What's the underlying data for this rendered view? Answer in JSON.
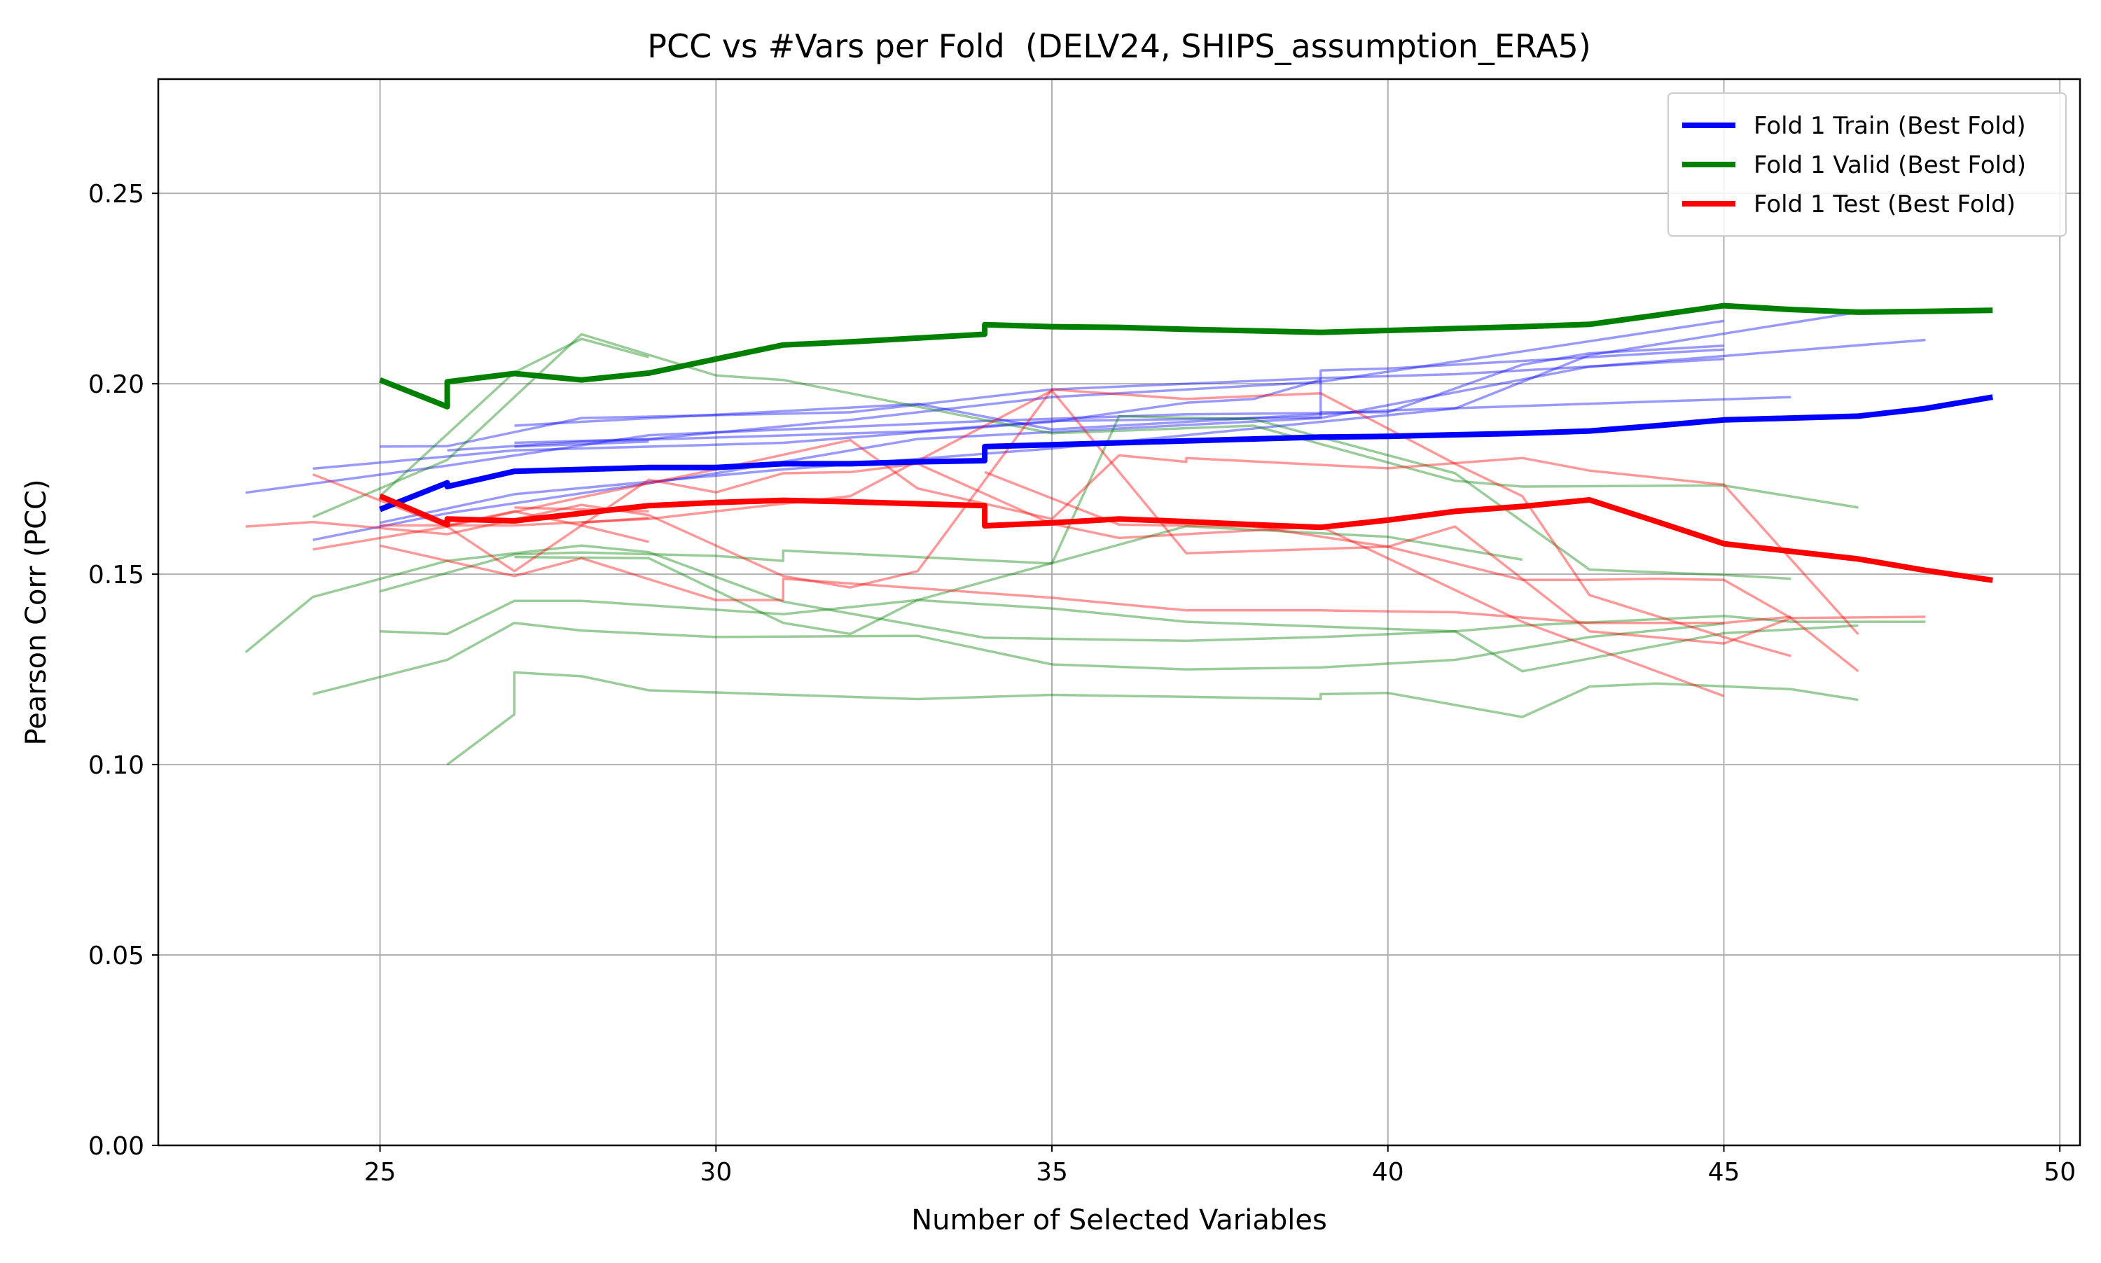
{
  "chart_data": {
    "type": "line",
    "title": "PCC vs #Vars per Fold  (DELV24, SHIPS_assumption_ERA5)",
    "xlabel": "Number of Selected Variables",
    "ylabel": "Pearson Corr (PCC)",
    "xlim": [
      21.7,
      50.3
    ],
    "ylim": [
      0,
      0.28
    ],
    "xticks": [
      25,
      30,
      35,
      40,
      45,
      50
    ],
    "yticks": [
      0.0,
      0.05,
      0.1,
      0.15,
      0.2,
      0.25
    ],
    "xtick_labels": [
      "25",
      "30",
      "35",
      "40",
      "45",
      "50"
    ],
    "ytick_labels": [
      "0.00",
      "0.05",
      "0.10",
      "0.15",
      "0.20",
      "0.25"
    ],
    "grid": true,
    "legend_position": "upper right",
    "colors": {
      "train": "#0000ff",
      "valid": "#008000",
      "test": "#ff0000"
    },
    "series": [
      {
        "name": "Fold 1 Train (Best Fold)",
        "role": "train",
        "highlight": true,
        "x": [
          25,
          26,
          26,
          27,
          28,
          29,
          30,
          31,
          32,
          33,
          34,
          34,
          35,
          36,
          37,
          38,
          39,
          40,
          41,
          42,
          43,
          44,
          45,
          46,
          47,
          48,
          49
        ],
        "y": [
          0.167,
          0.174,
          0.173,
          0.177,
          0.1775,
          0.178,
          0.178,
          0.179,
          0.179,
          0.1795,
          0.1798,
          0.1835,
          0.184,
          0.1845,
          0.185,
          0.1855,
          0.186,
          0.1862,
          0.1866,
          0.187,
          0.1876,
          0.189,
          0.1905,
          0.191,
          0.1915,
          0.1935,
          0.1965
        ]
      },
      {
        "name": "Fold 1 Valid (Best Fold)",
        "role": "valid",
        "highlight": true,
        "x": [
          25,
          26,
          26,
          27,
          28,
          29,
          30,
          31,
          32,
          33,
          34,
          34,
          35,
          36,
          37,
          38,
          39,
          40,
          41,
          42,
          43,
          44,
          45,
          46,
          47,
          48,
          49
        ],
        "y": [
          0.201,
          0.194,
          0.2005,
          0.2027,
          0.201,
          0.2028,
          0.2065,
          0.2102,
          0.211,
          0.212,
          0.213,
          0.2155,
          0.215,
          0.2148,
          0.2143,
          0.2139,
          0.2135,
          0.214,
          0.2145,
          0.215,
          0.2156,
          0.218,
          0.2205,
          0.2195,
          0.2188,
          0.219,
          0.2193
        ]
      },
      {
        "name": "Fold 1 Test (Best Fold)",
        "role": "test",
        "highlight": true,
        "x": [
          25,
          26,
          26,
          27,
          28,
          29,
          30,
          31,
          32,
          33,
          34,
          34,
          35,
          36,
          37,
          38,
          39,
          40,
          41,
          42,
          43,
          44,
          45,
          46,
          47,
          48,
          49
        ],
        "y": [
          0.1705,
          0.163,
          0.1645,
          0.164,
          0.166,
          0.168,
          0.1688,
          0.1694,
          0.169,
          0.1685,
          0.168,
          0.1627,
          0.1635,
          0.1645,
          0.1638,
          0.163,
          0.1623,
          0.1642,
          0.1665,
          0.1678,
          0.1695,
          0.1638,
          0.158,
          0.156,
          0.154,
          0.151,
          0.1484
        ]
      },
      {
        "role": "train",
        "x": [
          23,
          26,
          29,
          34,
          37,
          39,
          39,
          40,
          42,
          43,
          45
        ],
        "y": [
          0.1714,
          0.1785,
          0.1865,
          0.1902,
          0.192,
          0.1923,
          0.1925,
          0.1925,
          0.205,
          0.208,
          0.21
        ]
      },
      {
        "role": "train",
        "x": [
          24,
          27,
          31,
          35,
          37,
          38,
          39
        ],
        "y": [
          0.1777,
          0.1825,
          0.1845,
          0.19,
          0.195,
          0.196,
          0.201
        ]
      },
      {
        "role": "train",
        "x": [
          25,
          26,
          28,
          32,
          35,
          39,
          41,
          45
        ],
        "y": [
          0.1835,
          0.1836,
          0.191,
          0.1925,
          0.1985,
          0.2015,
          0.2025,
          0.2065
        ]
      },
      {
        "role": "train",
        "x": [
          26,
          28,
          33,
          35,
          39,
          39,
          40,
          45
        ],
        "y": [
          0.1825,
          0.1848,
          0.1875,
          0.1902,
          0.1912,
          0.2035,
          0.204,
          0.209
        ]
      },
      {
        "role": "train",
        "x": [
          27,
          29,
          32,
          35,
          39,
          45
        ],
        "y": [
          0.1845,
          0.1855,
          0.1905,
          0.1965,
          0.2005,
          0.2165
        ]
      },
      {
        "role": "train",
        "x": [
          27,
          28,
          33,
          35,
          40,
          46
        ],
        "y": [
          0.189,
          0.19,
          0.1947,
          0.188,
          0.193,
          0.1965
        ]
      },
      {
        "role": "train",
        "x": [
          24,
          26,
          30,
          33,
          39,
          43,
          48
        ],
        "y": [
          0.159,
          0.166,
          0.1765,
          0.1855,
          0.191,
          0.2045,
          0.2115
        ]
      },
      {
        "role": "train",
        "x": [
          25,
          27,
          31,
          35,
          41,
          43,
          47
        ],
        "y": [
          0.1635,
          0.171,
          0.1775,
          0.183,
          0.1935,
          0.2075,
          0.2188
        ]
      },
      {
        "role": "train",
        "x": [
          27,
          29
        ],
        "y": [
          0.1835,
          0.1848
        ]
      },
      {
        "role": "valid",
        "x": [
          24,
          26,
          28,
          30,
          31,
          35,
          38,
          41,
          42,
          45,
          47
        ],
        "y": [
          0.165,
          0.18,
          0.213,
          0.2022,
          0.201,
          0.187,
          0.189,
          0.1745,
          0.173,
          0.1733,
          0.1675
        ]
      },
      {
        "role": "valid",
        "x": [
          25,
          27,
          28,
          29
        ],
        "y": [
          0.1705,
          0.203,
          0.2118,
          0.207
        ]
      },
      {
        "role": "valid",
        "x": [
          23,
          24,
          26,
          28,
          29,
          31,
          33,
          34,
          37,
          39,
          41,
          42,
          45,
          47
        ],
        "y": [
          0.1295,
          0.144,
          0.1535,
          0.1575,
          0.1558,
          0.1428,
          0.1365,
          0.1333,
          0.1325,
          0.1335,
          0.135,
          0.1245,
          0.1345,
          0.1365
        ]
      },
      {
        "role": "valid",
        "x": [
          25,
          27,
          28,
          30,
          31,
          31,
          35,
          36,
          38,
          41,
          43,
          45,
          46
        ],
        "y": [
          0.1455,
          0.1552,
          0.1557,
          0.1548,
          0.1535,
          0.1562,
          0.1528,
          0.1915,
          0.1907,
          0.1765,
          0.1512,
          0.1498,
          0.1488
        ]
      },
      {
        "role": "valid",
        "x": [
          24,
          26,
          27,
          28,
          30,
          33,
          35,
          37,
          39,
          41,
          43,
          45
        ],
        "y": [
          0.1185,
          0.1275,
          0.1372,
          0.1352,
          0.1335,
          0.1338,
          0.1263,
          0.125,
          0.1255,
          0.1275,
          0.1335,
          0.137
        ]
      },
      {
        "role": "valid",
        "x": [
          26,
          27,
          27,
          28,
          29,
          33,
          35,
          37,
          39,
          39,
          40,
          42,
          43,
          44,
          46,
          47
        ],
        "y": [
          0.1,
          0.1132,
          0.1242,
          0.1232,
          0.1195,
          0.1172,
          0.1183,
          0.1178,
          0.1172,
          0.1185,
          0.1188,
          0.1125,
          0.1205,
          0.1213,
          0.1198,
          0.117
        ]
      },
      {
        "role": "valid",
        "x": [
          25,
          26,
          27,
          28,
          31,
          33,
          35,
          37,
          41,
          42,
          45,
          46,
          48
        ],
        "y": [
          0.135,
          0.1343,
          0.143,
          0.143,
          0.1395,
          0.1432,
          0.141,
          0.1375,
          0.135,
          0.1365,
          0.139,
          0.1375,
          0.1375
        ]
      },
      {
        "role": "valid",
        "x": [
          27,
          29,
          31,
          32,
          33,
          37,
          40,
          42
        ],
        "y": [
          0.1545,
          0.1542,
          0.1372,
          0.1343,
          0.1432,
          0.1626,
          0.1598,
          0.1538
        ]
      },
      {
        "role": "test",
        "x": [
          23,
          24,
          26,
          28,
          29,
          31,
          32,
          33,
          35,
          37,
          39,
          41,
          42,
          43,
          45,
          46
        ],
        "y": [
          0.1625,
          0.1637,
          0.1605,
          0.1682,
          0.1655,
          0.1495,
          0.1465,
          0.1508,
          0.1985,
          0.196,
          0.1975,
          0.179,
          0.1705,
          0.1445,
          0.1335,
          0.1285
        ]
      },
      {
        "role": "test",
        "x": [
          24,
          26,
          27,
          29,
          30,
          31,
          32,
          33,
          35,
          36,
          39,
          42,
          45
        ],
        "y": [
          0.1762,
          0.1625,
          0.1508,
          0.1748,
          0.1715,
          0.1765,
          0.1768,
          0.179,
          0.1632,
          0.1595,
          0.1625,
          0.1375,
          0.118
        ]
      },
      {
        "role": "test",
        "x": [
          25,
          27,
          28,
          30,
          31,
          31,
          35,
          37,
          39,
          41,
          43,
          45,
          46
        ],
        "y": [
          0.1575,
          0.1495,
          0.1542,
          0.1432,
          0.1432,
          0.1488,
          0.1438,
          0.1405,
          0.1405,
          0.14,
          0.1372,
          0.1372,
          0.1388
        ]
      },
      {
        "role": "test",
        "x": [
          24,
          26,
          28,
          30,
          32,
          33,
          35,
          36,
          37,
          37,
          40,
          42,
          43,
          45,
          47
        ],
        "y": [
          0.1565,
          0.1625,
          0.1702,
          0.1775,
          0.1852,
          0.1725,
          0.1645,
          0.1812,
          0.1795,
          0.1805,
          0.1778,
          0.1805,
          0.1772,
          0.1735,
          0.1342
        ]
      },
      {
        "role": "test",
        "x": [
          25,
          27,
          29,
          32,
          35,
          37,
          40,
          41,
          43,
          45,
          46,
          47
        ],
        "y": [
          0.1628,
          0.1628,
          0.1645,
          0.1705,
          0.1982,
          0.1555,
          0.1572,
          0.1625,
          0.135,
          0.1318,
          0.1385,
          0.1245
        ]
      },
      {
        "role": "test",
        "x": [
          26,
          27,
          28,
          29
        ],
        "y": [
          0.1628,
          0.1665,
          0.1628,
          0.1585
        ]
      },
      {
        "role": "test",
        "x": [
          27,
          29
        ],
        "y": [
          0.1675,
          0.1665
        ]
      },
      {
        "role": "test",
        "x": [
          28,
          29
        ],
        "y": [
          0.1635,
          0.1648
        ]
      },
      {
        "role": "test",
        "x": [
          34,
          36,
          38,
          40,
          42,
          43,
          44,
          45,
          46,
          48
        ],
        "y": [
          0.1768,
          0.163,
          0.1625,
          0.1572,
          0.1485,
          0.1485,
          0.1488,
          0.1485,
          0.1385,
          0.1388
        ]
      }
    ]
  }
}
